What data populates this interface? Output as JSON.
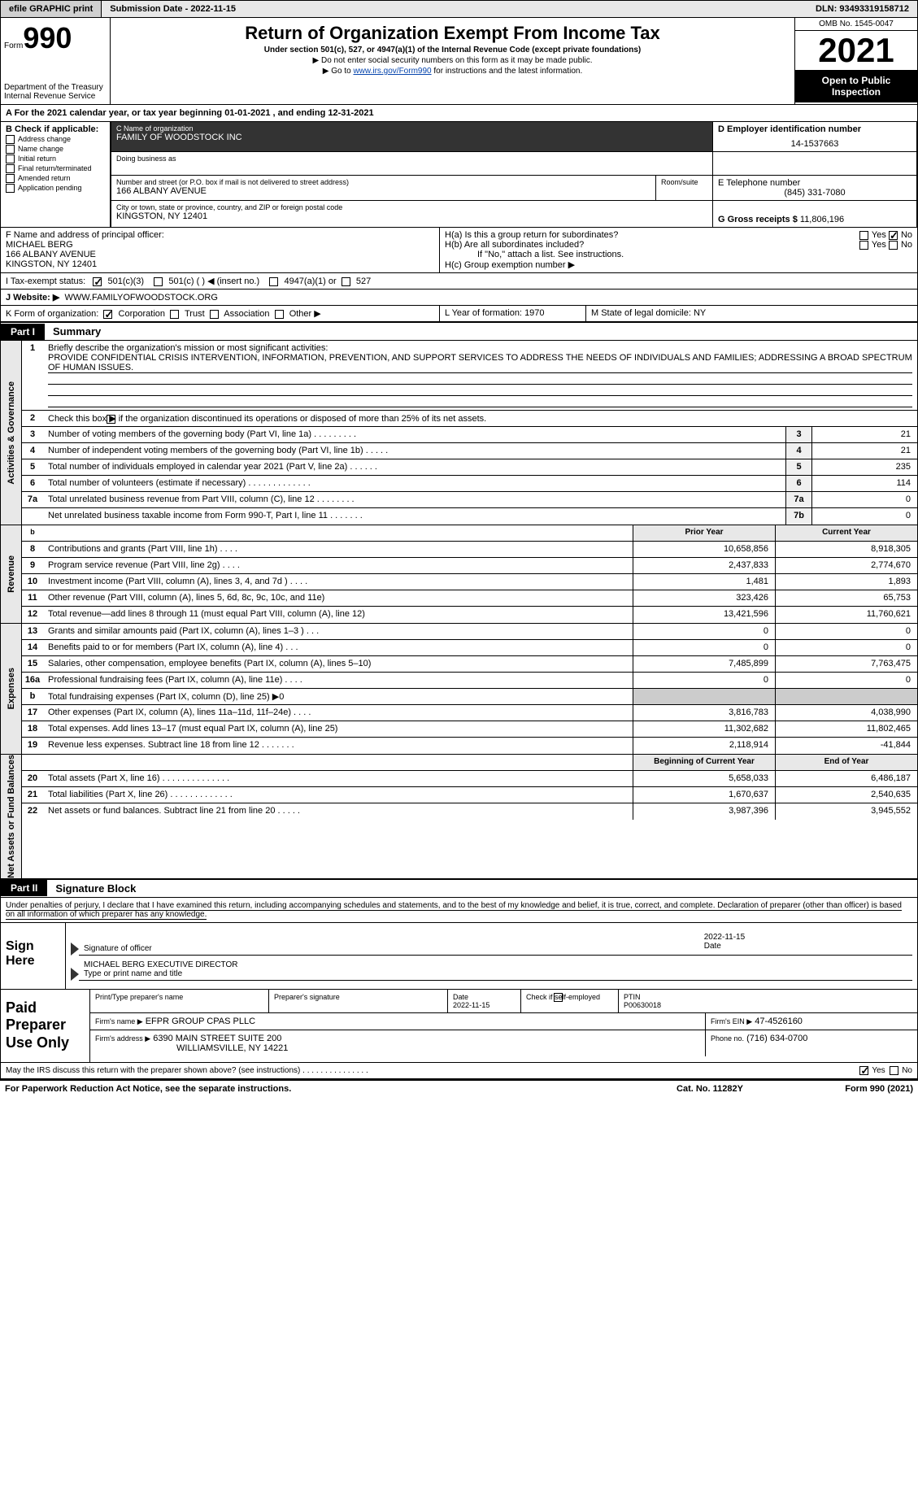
{
  "topbar": {
    "efile": "efile GRAPHIC print",
    "submission": "Submission Date - 2022-11-15",
    "dln": "DLN: 93493319158712"
  },
  "header": {
    "form_label": "Form",
    "form_number": "990",
    "title": "Return of Organization Exempt From Income Tax",
    "subtitle": "Under section 501(c), 527, or 4947(a)(1) of the Internal Revenue Code (except private foundations)",
    "note1": "▶ Do not enter social security numbers on this form as it may be made public.",
    "note2_pre": "▶ Go to ",
    "note2_link": "www.irs.gov/Form990",
    "note2_post": " for instructions and the latest information.",
    "omb": "OMB No. 1545-0047",
    "year": "2021",
    "pub_insp": "Open to Public Inspection",
    "dept": "Department of the Treasury",
    "irs": "Internal Revenue Service"
  },
  "lineA": "A For the 2021 calendar year, or tax year beginning 01-01-2021    , and ending 12-31-2021",
  "boxB": {
    "label": "B Check if applicable:",
    "opts": [
      "Address change",
      "Name change",
      "Initial return",
      "Final return/terminated",
      "Amended return",
      "Application pending"
    ]
  },
  "boxC": {
    "name_label": "C Name of organization",
    "name": "FAMILY OF WOODSTOCK INC",
    "dba_label": "Doing business as",
    "addr_label": "Number and street (or P.O. box if mail is not delivered to street address)",
    "room_label": "Room/suite",
    "addr": "166 ALBANY AVENUE",
    "city_label": "City or town, state or province, country, and ZIP or foreign postal code",
    "city": "KINGSTON, NY  12401"
  },
  "boxD": {
    "label": "D Employer identification number",
    "value": "14-1537663"
  },
  "boxE": {
    "label": "E Telephone number",
    "value": "(845) 331-7080"
  },
  "boxG": {
    "label": "G Gross receipts $",
    "value": "11,806,196"
  },
  "boxF": {
    "label": "F Name and address of principal officer:",
    "name": "MICHAEL BERG",
    "addr1": "166 ALBANY AVENUE",
    "addr2": "KINGSTON, NY  12401"
  },
  "boxH": {
    "a_label": "H(a)  Is this a group return for subordinates?",
    "b_label": "H(b)  Are all subordinates included?",
    "b_note": "If \"No,\" attach a list. See instructions.",
    "c_label": "H(c)  Group exemption number ▶",
    "yes": "Yes",
    "no": "No"
  },
  "boxI": {
    "label": "I    Tax-exempt status:",
    "c3": "501(c)(3)",
    "c": "501(c) (  ) ◀ (insert no.)",
    "a1": "4947(a)(1) or",
    "s527": "527"
  },
  "boxJ": {
    "label": "J   Website: ▶",
    "value": "WWW.FAMILYOFWOODSTOCK.ORG"
  },
  "boxK": {
    "label": "K Form of organization:",
    "corp": "Corporation",
    "trust": "Trust",
    "assoc": "Association",
    "other": "Other ▶"
  },
  "boxL": {
    "label": "L Year of formation:",
    "value": "1970"
  },
  "boxM": {
    "label": "M State of legal domicile:",
    "value": "NY"
  },
  "part1": {
    "label": "Part I",
    "title": "Summary"
  },
  "summary": {
    "l1_label": "Briefly describe the organization's mission or most significant activities:",
    "l1_text": "PROVIDE CONFIDENTIAL CRISIS INTERVENTION, INFORMATION, PREVENTION, AND SUPPORT SERVICES TO ADDRESS THE NEEDS OF INDIVIDUALS AND FAMILIES; ADDRESSING A BROAD SPECTRUM OF HUMAN ISSUES.",
    "l2": "Check this box ▶        if the organization discontinued its operations or disposed of more than 25% of its net assets.",
    "rows_ag": [
      {
        "n": "3",
        "d": "Number of voting members of the governing body (Part VI, line 1a)   .    .    .    .    .    .    .    .    .",
        "b": "3",
        "v": "21"
      },
      {
        "n": "4",
        "d": "Number of independent voting members of the governing body (Part VI, line 1b)   .    .    .    .    .",
        "b": "4",
        "v": "21"
      },
      {
        "n": "5",
        "d": "Total number of individuals employed in calendar year 2021 (Part V, line 2a)   .    .    .    .    .    .",
        "b": "5",
        "v": "235"
      },
      {
        "n": "6",
        "d": "Total number of volunteers (estimate if necessary)    .    .    .    .    .    .    .    .    .    .    .    .    .",
        "b": "6",
        "v": "114"
      },
      {
        "n": "7a",
        "d": "Total unrelated business revenue from Part VIII, column (C), line 12   .    .    .    .    .    .    .    .",
        "b": "7a",
        "v": "0"
      },
      {
        "n": "",
        "d": "Net unrelated business taxable income from Form 990-T, Part I, line 11   .    .    .    .    .    .    .",
        "b": "7b",
        "v": "0"
      }
    ],
    "col_prior": "Prior Year",
    "col_current": "Current Year",
    "rev_rows": [
      {
        "n": "8",
        "d": "Contributions and grants (Part VIII, line 1h)   .    .    .    .",
        "p": "10,658,856",
        "c": "8,918,305"
      },
      {
        "n": "9",
        "d": "Program service revenue (Part VIII, line 2g)   .    .    .    .",
        "p": "2,437,833",
        "c": "2,774,670"
      },
      {
        "n": "10",
        "d": "Investment income (Part VIII, column (A), lines 3, 4, and 7d )   .    .    .    .",
        "p": "1,481",
        "c": "1,893"
      },
      {
        "n": "11",
        "d": "Other revenue (Part VIII, column (A), lines 5, 6d, 8c, 9c, 10c, and 11e)",
        "p": "323,426",
        "c": "65,753"
      },
      {
        "n": "12",
        "d": "Total revenue—add lines 8 through 11 (must equal Part VIII, column (A), line 12)",
        "p": "13,421,596",
        "c": "11,760,621"
      }
    ],
    "exp_rows": [
      {
        "n": "13",
        "d": "Grants and similar amounts paid (Part IX, column (A), lines 1–3 )   .    .    .",
        "p": "0",
        "c": "0"
      },
      {
        "n": "14",
        "d": "Benefits paid to or for members (Part IX, column (A), line 4)   .    .    .",
        "p": "0",
        "c": "0"
      },
      {
        "n": "15",
        "d": "Salaries, other compensation, employee benefits (Part IX, column (A), lines 5–10)",
        "p": "7,485,899",
        "c": "7,763,475"
      },
      {
        "n": "16a",
        "d": "Professional fundraising fees (Part IX, column (A), line 11e)   .    .    .    .",
        "p": "0",
        "c": "0"
      },
      {
        "n": "b",
        "d": "Total fundraising expenses (Part IX, column (D), line 25) ▶0",
        "p": "",
        "c": "",
        "shaded": true
      },
      {
        "n": "17",
        "d": "Other expenses (Part IX, column (A), lines 11a–11d, 11f–24e)   .    .    .    .",
        "p": "3,816,783",
        "c": "4,038,990"
      },
      {
        "n": "18",
        "d": "Total expenses. Add lines 13–17 (must equal Part IX, column (A), line 25)",
        "p": "11,302,682",
        "c": "11,802,465"
      },
      {
        "n": "19",
        "d": "Revenue less expenses. Subtract line 18 from line 12   .    .    .    .    .    .    .",
        "p": "2,118,914",
        "c": "-41,844"
      }
    ],
    "col_boy": "Beginning of Current Year",
    "col_eoy": "End of Year",
    "na_rows": [
      {
        "n": "20",
        "d": "Total assets (Part X, line 16)   .    .    .    .    .    .    .    .    .    .    .    .    .    .",
        "p": "5,658,033",
        "c": "6,486,187"
      },
      {
        "n": "21",
        "d": "Total liabilities (Part X, line 26)   .    .    .    .    .    .    .    .    .    .    .    .    .",
        "p": "1,670,637",
        "c": "2,540,635"
      },
      {
        "n": "22",
        "d": "Net assets or fund balances. Subtract line 21 from line 20   .    .    .    .    .",
        "p": "3,987,396",
        "c": "3,945,552"
      }
    ]
  },
  "vlabels": {
    "ag": "Activities & Governance",
    "rev": "Revenue",
    "exp": "Expenses",
    "na": "Net Assets or Fund Balances"
  },
  "part2": {
    "label": "Part II",
    "title": "Signature Block"
  },
  "sig": {
    "decl": "Under penalties of perjury, I declare that I have examined this return, including accompanying schedules and statements, and to the best of my knowledge and belief, it is true, correct, and complete. Declaration of preparer (other than officer) is based on all information of which preparer has any knowledge.",
    "sign_here": "Sign Here",
    "sig_officer_date": "2022-11-15",
    "sig_officer_label": "Signature of officer",
    "date_label": "Date",
    "name_title": "MICHAEL BERG  EXECUTIVE DIRECTOR",
    "name_title_label": "Type or print name and title"
  },
  "paid": {
    "label": "Paid Preparer Use Only",
    "h_print": "Print/Type preparer's name",
    "h_sig": "Preparer's signature",
    "h_date": "Date",
    "date": "2022-11-15",
    "h_check": "Check         if self-employed",
    "h_ptin": "PTIN",
    "ptin": "P00630018",
    "firm_name_label": "Firm's name     ▶",
    "firm_name": "EFPR GROUP CPAS PLLC",
    "firm_ein_label": "Firm's EIN ▶",
    "firm_ein": "47-4526160",
    "firm_addr_label": "Firm's address ▶",
    "firm_addr1": "6390 MAIN STREET SUITE 200",
    "firm_addr2": "WILLIAMSVILLE, NY  14221",
    "phone_label": "Phone no.",
    "phone": "(716) 634-0700"
  },
  "footer": {
    "discuss": "May the IRS discuss this return with the preparer shown above? (see instructions)   .    .    .    .    .    .    .    .    .    .    .    .    .    .    .",
    "yes": "Yes",
    "no": "No"
  },
  "final": {
    "pra": "For Paperwork Reduction Act Notice, see the separate instructions.",
    "cat": "Cat. No. 11282Y",
    "form": "Form 990 (2021)"
  }
}
